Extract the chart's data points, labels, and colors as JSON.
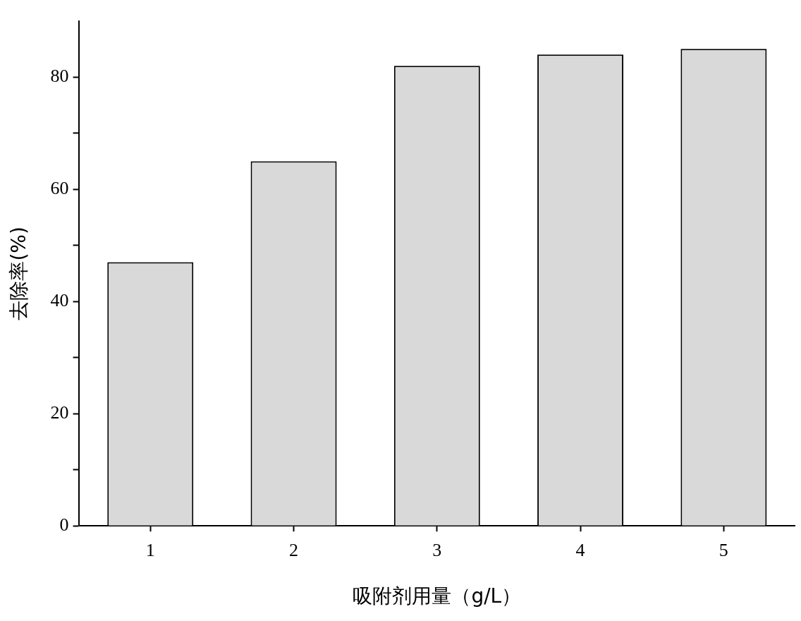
{
  "chart_data": {
    "type": "bar",
    "xlabel": "吸附剂用量（g/L）",
    "ylabel": "去除率(%)",
    "categories": [
      "1",
      "2",
      "3",
      "4",
      "5"
    ],
    "values": [
      47,
      65,
      82,
      84,
      85
    ],
    "color": "#d9d9d9",
    "ylim": [
      0,
      90
    ],
    "yticks": [
      0,
      {
        "value": 10,
        "label": null
      },
      20,
      {
        "value": 30,
        "label": null
      },
      40,
      {
        "value": 50,
        "label": null
      },
      60,
      {
        "value": 70,
        "label": null
      },
      80
    ],
    "grid": false,
    "legend": false
  }
}
